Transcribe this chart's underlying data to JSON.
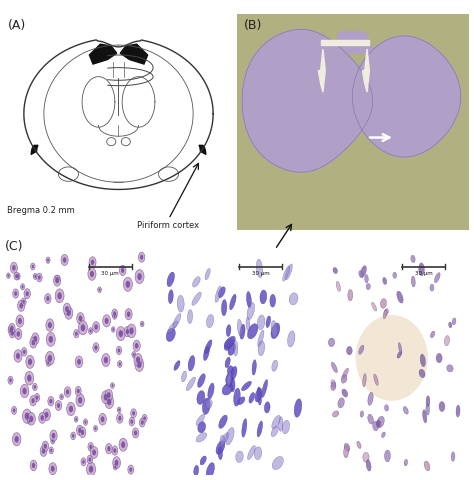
{
  "panel_A_label": "(A)",
  "panel_B_label": "(B)",
  "panel_C_label": "(C)",
  "bregma_text": "Bregma 0.2 mm",
  "piriform_text": "Piriform cortex",
  "scale_bar_text": "30 μm",
  "bg_color": "#ffffff",
  "panel_B_bg": "#b8b898",
  "panel_B_brain": "#b8aac8",
  "panel_C1_bg": "#d8b890",
  "panel_C2_bg": "#d8d4e8",
  "panel_C3_bg": "#d4b888"
}
